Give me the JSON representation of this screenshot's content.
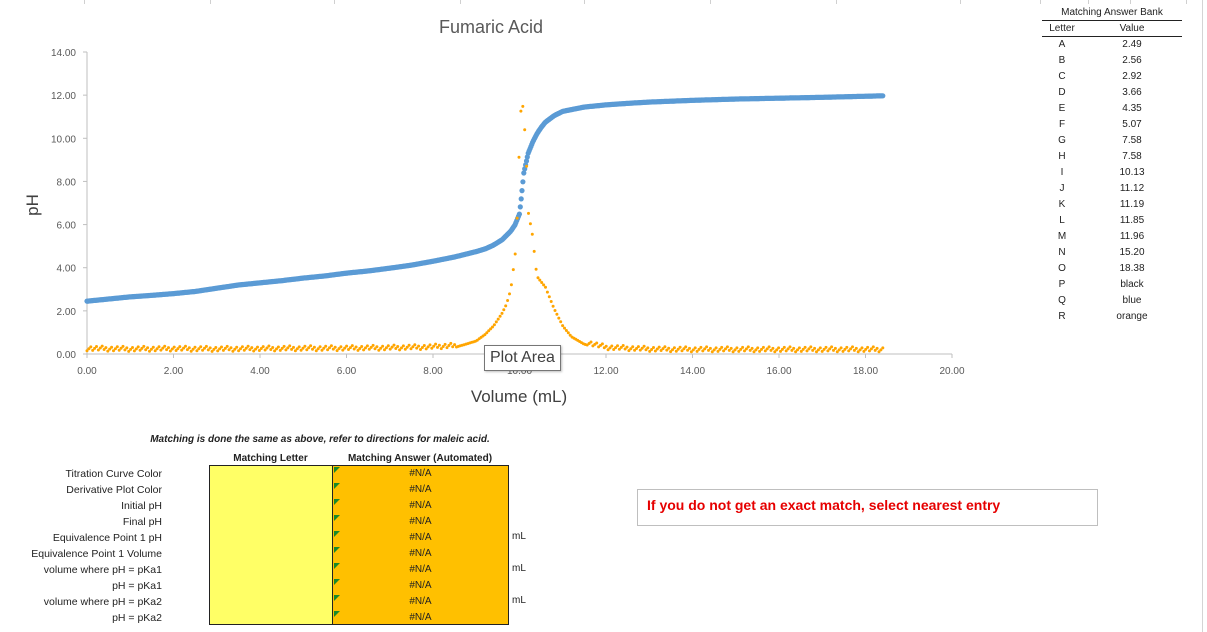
{
  "chart_data": {
    "type": "scatter",
    "title": "Fumaric Acid",
    "xlabel": "Volume (mL)",
    "ylabel": "pH",
    "xlim": [
      0,
      20
    ],
    "ylim": [
      0,
      14
    ],
    "x_ticks": [
      "0.00",
      "2.00",
      "4.00",
      "6.00",
      "8.00",
      "10.00",
      "12.00",
      "14.00",
      "16.00",
      "18.00",
      "20.00"
    ],
    "y_ticks": [
      "0.00",
      "2.00",
      "4.00",
      "6.00",
      "8.00",
      "10.00",
      "12.00",
      "14.00"
    ],
    "series": [
      {
        "color": "#5b9bd5",
        "x": [
          0,
          0.5,
          1,
          1.5,
          2,
          2.5,
          3,
          3.5,
          4,
          4.5,
          5,
          5.5,
          6,
          6.5,
          7,
          7.5,
          8,
          8.5,
          9,
          9.2,
          9.4,
          9.6,
          9.8,
          9.9,
          10,
          10.05,
          10.1,
          10.2,
          10.3,
          10.4,
          10.5,
          10.6,
          10.8,
          11,
          11.5,
          12,
          12.5,
          13,
          13.5,
          14,
          15,
          16,
          17,
          18,
          18.4
        ],
        "y": [
          2.45,
          2.55,
          2.65,
          2.72,
          2.8,
          2.9,
          3.05,
          3.2,
          3.3,
          3.4,
          3.52,
          3.62,
          3.75,
          3.85,
          3.98,
          4.12,
          4.3,
          4.5,
          4.75,
          4.87,
          5.05,
          5.3,
          5.7,
          6.0,
          6.5,
          7.4,
          8.4,
          9.3,
          9.8,
          10.2,
          10.5,
          10.75,
          11.05,
          11.25,
          11.45,
          11.55,
          11.62,
          11.68,
          11.72,
          11.76,
          11.82,
          11.86,
          11.9,
          11.95,
          11.97
        ]
      },
      {
        "color": "#ffa500",
        "x": [
          0,
          1,
          2,
          3,
          4,
          5,
          6,
          7,
          8,
          8.5,
          9,
          9.2,
          9.4,
          9.6,
          9.7,
          9.8,
          9.9,
          9.95,
          10,
          10.05,
          10.1,
          10.15,
          10.2,
          10.3,
          10.4,
          10.6,
          10.8,
          11,
          11.2,
          11.5,
          12,
          13,
          14,
          15,
          16,
          17,
          18,
          18.4
        ],
        "x_note_type": "derivative",
        "y": [
          0.15,
          0.12,
          0.14,
          0.12,
          0.14,
          0.15,
          0.16,
          0.18,
          0.22,
          0.3,
          0.6,
          0.9,
          1.3,
          1.9,
          2.3,
          3.0,
          4.6,
          6.5,
          9.9,
          12.0,
          11.0,
          9.5,
          6.6,
          5.5,
          3.6,
          3.1,
          2.1,
          1.3,
          0.8,
          0.45,
          0.2,
          0.12,
          0.1,
          0.1,
          0.1,
          0.1,
          0.1,
          0.1
        ]
      }
    ],
    "grid": false,
    "legend": "none"
  },
  "tooltip": "Plot Area",
  "answer_bank": {
    "title": "Matching Answer Bank",
    "col_letter": "Letter",
    "col_value": "Value",
    "rows": [
      {
        "letter": "A",
        "value": "2.49"
      },
      {
        "letter": "B",
        "value": "2.56"
      },
      {
        "letter": "C",
        "value": "2.92"
      },
      {
        "letter": "D",
        "value": "3.66"
      },
      {
        "letter": "E",
        "value": "4.35"
      },
      {
        "letter": "F",
        "value": "5.07"
      },
      {
        "letter": "G",
        "value": "7.58"
      },
      {
        "letter": "H",
        "value": "7.58"
      },
      {
        "letter": "I",
        "value": "10.13"
      },
      {
        "letter": "J",
        "value": "11.12"
      },
      {
        "letter": "K",
        "value": "11.19"
      },
      {
        "letter": "L",
        "value": "11.85"
      },
      {
        "letter": "M",
        "value": "11.96"
      },
      {
        "letter": "N",
        "value": "15.20"
      },
      {
        "letter": "O",
        "value": "18.38"
      },
      {
        "letter": "P",
        "value": "black"
      },
      {
        "letter": "Q",
        "value": "blue"
      },
      {
        "letter": "R",
        "value": "orange"
      }
    ]
  },
  "matching": {
    "note": "Matching is done the same as above, refer to directions for maleic acid.",
    "col_letter": "Matching Letter",
    "col_answer": "Matching Answer (Automated)",
    "rows": [
      {
        "label": "Titration Curve Color",
        "answer": "#N/A",
        "unit": ""
      },
      {
        "label": "Derivative Plot Color",
        "answer": "#N/A",
        "unit": ""
      },
      {
        "label": "Initial pH",
        "answer": "#N/A",
        "unit": ""
      },
      {
        "label": "Final pH",
        "answer": "#N/A",
        "unit": ""
      },
      {
        "label": "Equivalence Point 1 pH",
        "answer": "#N/A",
        "unit": "mL"
      },
      {
        "label": "Equivalence Point 1 Volume",
        "answer": "#N/A",
        "unit": ""
      },
      {
        "label": "volume where pH = pKa1",
        "answer": "#N/A",
        "unit": "mL"
      },
      {
        "label": "pH = pKa1",
        "answer": "#N/A",
        "unit": ""
      },
      {
        "label": "volume where pH = pKa2",
        "answer": "#N/A",
        "unit": "mL"
      },
      {
        "label": "pH = pKa2",
        "answer": "#N/A",
        "unit": ""
      }
    ]
  },
  "message": "If you do not get an exact match, select nearest entry"
}
